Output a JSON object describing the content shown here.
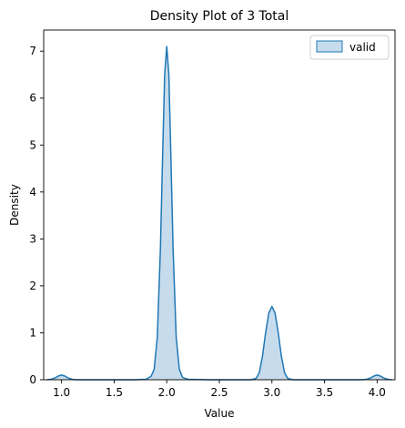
{
  "chart_data": {
    "type": "area",
    "title": "Density Plot of 3 Total",
    "xlabel": "Value",
    "ylabel": "Density",
    "xlim": [
      0.83,
      4.17
    ],
    "ylim": [
      0,
      7.45
    ],
    "xticks": [
      1.0,
      1.5,
      2.0,
      2.5,
      3.0,
      3.5,
      4.0
    ],
    "xtick_labels": [
      "1.0",
      "1.5",
      "2.0",
      "2.5",
      "3.0",
      "3.5",
      "4.0"
    ],
    "yticks": [
      0,
      1,
      2,
      3,
      4,
      5,
      6,
      7
    ],
    "ytick_labels": [
      "0",
      "1",
      "2",
      "3",
      "4",
      "5",
      "6",
      "7"
    ],
    "grid": false,
    "legend": {
      "position": "top-right",
      "entries": [
        "valid"
      ]
    },
    "series": [
      {
        "name": "valid",
        "color": "#1f77b4",
        "fill_color": "#c6dcec",
        "x": [
          0.86,
          0.9,
          0.94,
          0.97,
          1.0,
          1.03,
          1.06,
          1.1,
          1.14,
          1.3,
          1.5,
          1.7,
          1.8,
          1.85,
          1.88,
          1.91,
          1.94,
          1.96,
          1.98,
          2.0,
          2.02,
          2.04,
          2.06,
          2.09,
          2.12,
          2.15,
          2.2,
          2.4,
          2.6,
          2.8,
          2.85,
          2.88,
          2.91,
          2.94,
          2.97,
          3.0,
          3.03,
          3.06,
          3.09,
          3.12,
          3.15,
          3.2,
          3.4,
          3.6,
          3.8,
          3.86,
          3.9,
          3.94,
          3.97,
          4.0,
          4.03,
          4.06,
          4.1,
          4.14
        ],
        "y": [
          0.0,
          0.01,
          0.04,
          0.08,
          0.1,
          0.08,
          0.04,
          0.01,
          0.0,
          0.0,
          0.0,
          0.0,
          0.01,
          0.07,
          0.22,
          0.9,
          2.8,
          4.7,
          6.5,
          7.1,
          6.5,
          4.7,
          2.8,
          0.9,
          0.22,
          0.05,
          0.01,
          0.0,
          0.0,
          0.0,
          0.03,
          0.15,
          0.5,
          1.0,
          1.42,
          1.56,
          1.42,
          1.0,
          0.5,
          0.15,
          0.03,
          0.0,
          0.0,
          0.0,
          0.0,
          0.0,
          0.01,
          0.04,
          0.08,
          0.1,
          0.08,
          0.04,
          0.01,
          0.0
        ]
      }
    ]
  }
}
